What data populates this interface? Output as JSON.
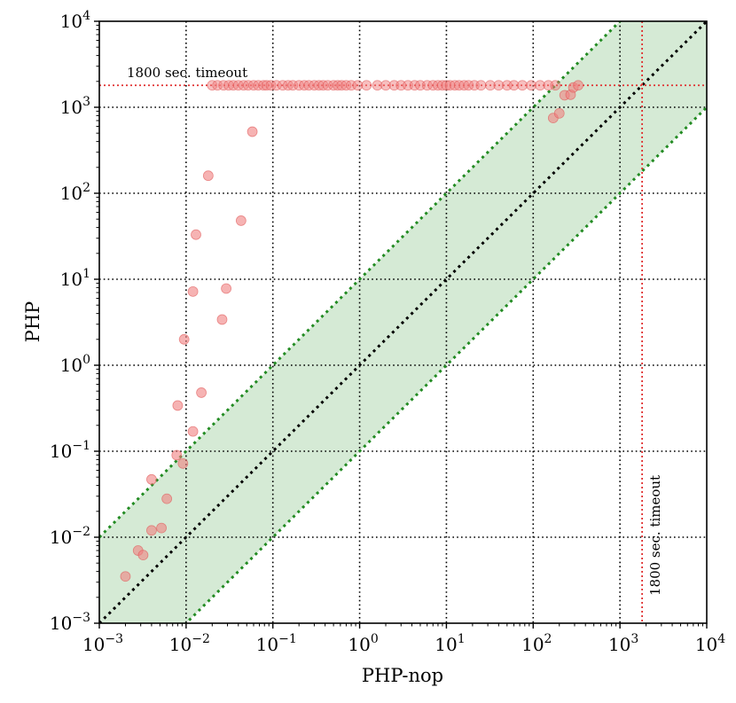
{
  "chart_data": {
    "type": "scatter",
    "xlabel": "PHP-nop",
    "ylabel": "PHP",
    "xscale": "log",
    "yscale": "log",
    "xlim": [
      0.001,
      10000
    ],
    "ylim": [
      0.001,
      10000
    ],
    "grid": true,
    "grid_style": "dotted",
    "x_tick_exponents": [
      "−3",
      "−2",
      "−1",
      "0",
      "1",
      "2",
      "3",
      "4"
    ],
    "y_tick_exponents": [
      "−3",
      "−2",
      "−1",
      "0",
      "1",
      "2",
      "3",
      "4"
    ],
    "tick_base": "10",
    "timeout_value": 1800,
    "timeout_label": "1800 sec. timeout",
    "reference_lines": [
      {
        "kind": "diagonal",
        "factor": 1,
        "color": "#000000"
      },
      {
        "kind": "diagonal",
        "factor": 10,
        "color": "#228b22"
      },
      {
        "kind": "diagonal",
        "factor": 0.1,
        "color": "#228b22"
      }
    ],
    "band": {
      "lower_factor": 0.1,
      "upper_factor": 10,
      "color": "#d5ead5"
    },
    "marker_color": "#f08080",
    "timeout_line_color": "#e03030",
    "points": [
      [
        0.002,
        0.0035
      ],
      [
        0.0028,
        0.007
      ],
      [
        0.0032,
        0.0062
      ],
      [
        0.004,
        0.012
      ],
      [
        0.004,
        0.047
      ],
      [
        0.0052,
        0.0128
      ],
      [
        0.006,
        0.028
      ],
      [
        0.0078,
        0.09
      ],
      [
        0.0092,
        0.072
      ],
      [
        0.008,
        0.34
      ],
      [
        0.012,
        0.17
      ],
      [
        0.015,
        0.48
      ],
      [
        0.0095,
        2.0
      ],
      [
        0.012,
        7.2
      ],
      [
        0.026,
        3.4
      ],
      [
        0.029,
        7.8
      ],
      [
        0.013,
        33
      ],
      [
        0.018,
        160
      ],
      [
        0.043,
        48
      ],
      [
        0.058,
        520
      ],
      [
        170,
        750
      ],
      [
        200,
        850
      ],
      [
        230,
        1380
      ],
      [
        270,
        1400
      ],
      [
        290,
        1700
      ],
      [
        330,
        1800
      ]
    ],
    "timeout_points_x": [
      0.02,
      0.023,
      0.027,
      0.031,
      0.035,
      0.04,
      0.046,
      0.052,
      0.06,
      0.068,
      0.078,
      0.085,
      0.095,
      0.11,
      0.13,
      0.15,
      0.17,
      0.2,
      0.23,
      0.26,
      0.3,
      0.34,
      0.38,
      0.43,
      0.5,
      0.56,
      0.62,
      0.7,
      0.8,
      0.95,
      1.2,
      1.6,
      2.0,
      2.5,
      3.0,
      3.6,
      4.3,
      5.0,
      6.0,
      7.0,
      8.0,
      9.0,
      10.0,
      11.0,
      12.5,
      14.0,
      16.0,
      18.0,
      21.0,
      25.0,
      32.0,
      40.0,
      50.0,
      60.0,
      75.0,
      95.0,
      120.0,
      150.0,
      180.0
    ]
  }
}
